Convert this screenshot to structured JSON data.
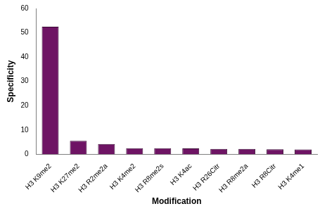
{
  "chart_data": {
    "type": "bar",
    "x_label": "Modification",
    "y_label": "Specificity",
    "categories": [
      "H3 K9me2",
      "H3 K27me2",
      "H3 R2me2a",
      "H3 K4me2",
      "H3 R8me2s",
      "H3 K4ac",
      "H3 R26Citr",
      "H3 R8me2a",
      "H3 R8Citr",
      "H3 K4me1"
    ],
    "values": [
      52.5,
      5.5,
      4.2,
      2.5,
      2.5,
      2.4,
      2.2,
      2.2,
      2.1,
      2.0
    ],
    "color": "#6e1464",
    "ylim": [
      0,
      60
    ],
    "yticks": [
      0,
      10,
      20,
      30,
      40,
      50,
      60
    ],
    "grid": false
  }
}
